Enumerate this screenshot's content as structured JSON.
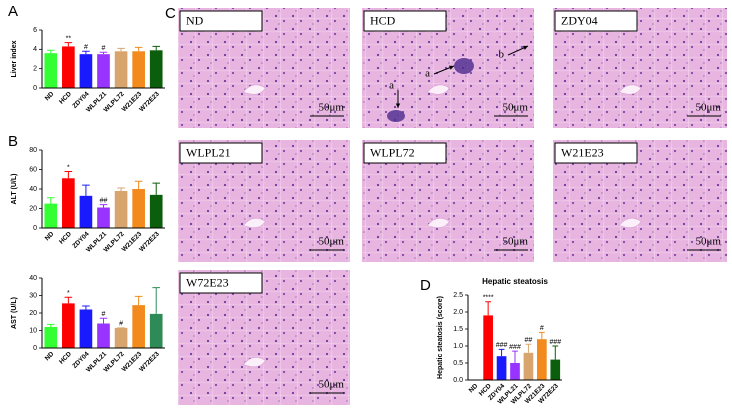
{
  "panel_labels": [
    "A",
    "B",
    "C",
    "D"
  ],
  "chart_data": [
    {
      "type": "bar",
      "ylabel": "Liver index",
      "categories": [
        "ND",
        "HCD",
        "ZDY04",
        "WLPL21",
        "WLPL72",
        "W21E23",
        "W72E23"
      ],
      "values": [
        3.6,
        4.3,
        3.5,
        3.5,
        3.8,
        3.8,
        3.9
      ],
      "errors": [
        0.3,
        0.4,
        0.3,
        0.2,
        0.3,
        0.4,
        0.4
      ],
      "marks": [
        null,
        "**",
        "#",
        "#",
        null,
        null,
        null
      ],
      "colors": [
        "#33ff33",
        "#ff0000",
        "#1a1aff",
        "#9933ff",
        "#d9a56e",
        "#f28a1e",
        "#0b5e0b"
      ],
      "ylim": [
        0,
        6
      ],
      "yticks": [
        0,
        2,
        4,
        6
      ]
    },
    {
      "type": "bar",
      "ylabel": "ALT (U/L)",
      "categories": [
        "ND",
        "HCD",
        "ZDY04",
        "WLPL21",
        "WLPL72",
        "W21E23",
        "W72E23"
      ],
      "values": [
        25,
        51,
        33,
        21,
        38,
        40,
        34
      ],
      "errors": [
        6,
        7,
        11,
        3,
        3,
        8,
        12
      ],
      "marks": [
        null,
        "*",
        null,
        "##",
        null,
        null,
        null
      ],
      "colors": [
        "#33ff33",
        "#ff0000",
        "#1a1aff",
        "#9933ff",
        "#d9a56e",
        "#f28a1e",
        "#0b5e0b"
      ],
      "ylim": [
        0,
        80
      ],
      "yticks": [
        0,
        20,
        40,
        60,
        80
      ]
    },
    {
      "type": "bar",
      "ylabel": "AST (U/L)",
      "categories": [
        "ND",
        "HCD",
        "ZDY04",
        "WLPL21",
        "WLPL72",
        "W21E23",
        "W72E23"
      ],
      "values": [
        12,
        25.5,
        22,
        14,
        11.5,
        24.5,
        19.5
      ],
      "errors": [
        1.5,
        3.5,
        2,
        3,
        0,
        5,
        15
      ],
      "marks": [
        null,
        "*",
        null,
        "#",
        "#",
        null,
        null
      ],
      "colors": [
        "#33ff33",
        "#ff0000",
        "#1a1aff",
        "#9933ff",
        "#d9a56e",
        "#f28a1e",
        "#2e8b57"
      ],
      "ylim": [
        0,
        40
      ],
      "yticks": [
        0,
        10,
        20,
        30,
        40
      ]
    },
    {
      "type": "bar",
      "title": "Hepatic steatosis",
      "ylabel": "Hepatic steatosis (score)",
      "categories": [
        "ND",
        "HCD",
        "ZDY04",
        "WLPL21",
        "WLPL72",
        "W21E23",
        "W72E23"
      ],
      "values": [
        0,
        1.9,
        0.7,
        0.5,
        0.8,
        1.2,
        0.6
      ],
      "errors": [
        0,
        0.4,
        0.2,
        0.35,
        0.25,
        0.2,
        0.4
      ],
      "marks": [
        null,
        "****",
        "###",
        "###",
        "##",
        "#",
        "###"
      ],
      "colors": [
        "#33ff33",
        "#ff0000",
        "#1a1aff",
        "#9933ff",
        "#d9a56e",
        "#f28a1e",
        "#0b5e0b"
      ],
      "ylim": [
        0,
        2.5
      ],
      "yticks": [
        {
          "value": 0,
          "label": "0.0"
        },
        0.5,
        {
          "value": 1,
          "label": "1.0"
        },
        1.5,
        {
          "value": 2,
          "label": "2.0"
        },
        2.5
      ]
    }
  ],
  "micrographs": [
    {
      "label": "ND",
      "scale": "50μm"
    },
    {
      "label": "HCD",
      "scale": "50μm",
      "annotations": [
        "a",
        "a",
        "b"
      ]
    },
    {
      "label": "ZDY04",
      "scale": "50μm"
    },
    {
      "label": "WLPL21",
      "scale": "50μm"
    },
    {
      "label": "WLPL72",
      "scale": "50μm"
    },
    {
      "label": "W21E23",
      "scale": "50μm"
    },
    {
      "label": "W72E23",
      "scale": "50μm"
    }
  ]
}
